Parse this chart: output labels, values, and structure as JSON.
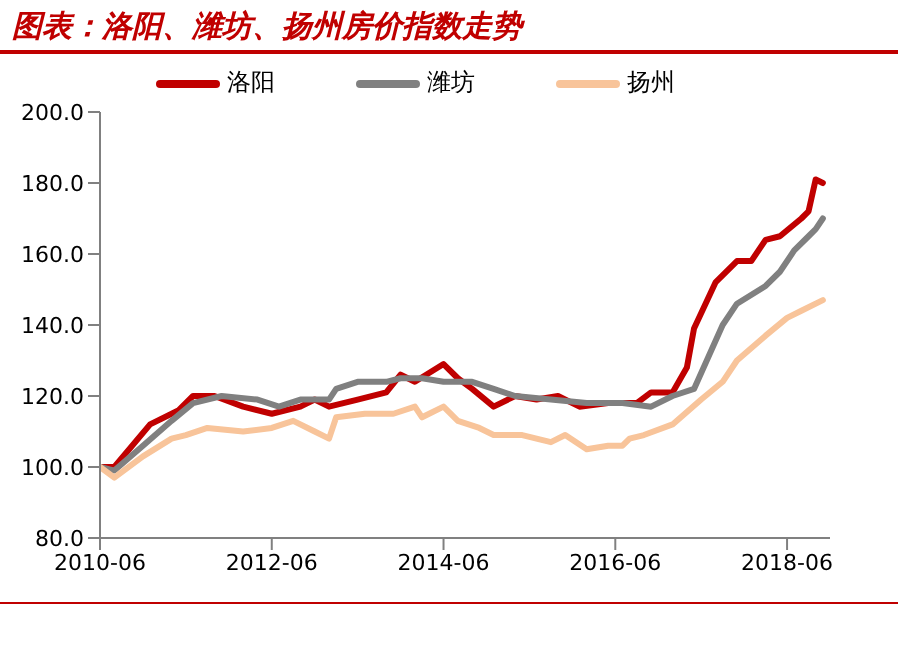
{
  "chart_data": {
    "type": "line",
    "title": "图表：洛阳、潍坊、扬州房价指数走势",
    "xlim": [
      "2010-06",
      "2018-12"
    ],
    "xticks": [
      {
        "value": "2010-06",
        "label": "2010-06"
      },
      {
        "value": "2012-06",
        "label": "2012-06"
      },
      {
        "value": "2014-06",
        "label": "2014-06"
      },
      {
        "value": "2016-06",
        "label": "2016-06"
      },
      {
        "value": "2018-06",
        "label": "2018-06"
      }
    ],
    "ylim": [
      80,
      200
    ],
    "yticks": [
      {
        "value": 80,
        "label": "80.0"
      },
      {
        "value": 100,
        "label": "100.0"
      },
      {
        "value": 120,
        "label": "120.0"
      },
      {
        "value": 140,
        "label": "140.0"
      },
      {
        "value": 160,
        "label": "160.0"
      },
      {
        "value": 180,
        "label": "180.0"
      },
      {
        "value": 200,
        "label": "200.0"
      }
    ],
    "grid": false,
    "legend": "top",
    "marker": "none",
    "line_style": "solid",
    "series": [
      {
        "name": "洛阳",
        "color": "#c00000",
        "x": [
          "2010-06",
          "2010-08",
          "2011-01",
          "2011-05",
          "2011-07",
          "2011-10",
          "2012-02",
          "2012-06",
          "2012-10",
          "2012-12",
          "2013-02",
          "2013-06",
          "2013-10",
          "2013-12",
          "2014-02",
          "2014-06",
          "2014-08",
          "2014-10",
          "2015-01",
          "2015-04",
          "2015-07",
          "2015-10",
          "2016-01",
          "2016-05",
          "2016-09",
          "2016-11",
          "2017-02",
          "2017-04",
          "2017-05",
          "2017-08",
          "2017-11",
          "2018-01",
          "2018-03",
          "2018-05",
          "2018-08",
          "2018-09",
          "2018-10",
          "2018-11"
        ],
        "values": [
          100,
          100,
          112,
          116,
          120,
          120,
          117,
          115,
          117,
          119,
          117,
          119,
          121,
          126,
          124,
          129,
          125,
          122,
          117,
          120,
          119,
          120,
          117,
          118,
          118,
          121,
          121,
          128,
          139,
          152,
          158,
          158,
          164,
          165,
          170,
          172,
          181,
          180
        ]
      },
      {
        "name": "潍坊",
        "color": "#808080",
        "x": [
          "2010-06",
          "2010-08",
          "2010-12",
          "2011-04",
          "2011-07",
          "2011-11",
          "2012-04",
          "2012-07",
          "2012-10",
          "2013-02",
          "2013-03",
          "2013-06",
          "2013-10",
          "2013-12",
          "2014-03",
          "2014-06",
          "2014-10",
          "2015-01",
          "2015-04",
          "2015-09",
          "2016-02",
          "2016-07",
          "2016-11",
          "2017-02",
          "2017-05",
          "2017-07",
          "2017-09",
          "2017-11",
          "2018-03",
          "2018-05",
          "2018-07",
          "2018-09",
          "2018-10",
          "2018-11"
        ],
        "values": [
          100,
          99,
          106,
          113,
          118,
          120,
          119,
          117,
          119,
          119,
          122,
          124,
          124,
          125,
          125,
          124,
          124,
          122,
          120,
          119,
          118,
          118,
          117,
          120,
          122,
          131,
          140,
          146,
          151,
          155,
          161,
          165,
          167,
          170
        ]
      },
      {
        "name": "扬州",
        "color": "#f8c49a",
        "x": [
          "2010-06",
          "2010-08",
          "2010-12",
          "2011-04",
          "2011-06",
          "2011-09",
          "2012-02",
          "2012-06",
          "2012-09",
          "2012-12",
          "2013-02",
          "2013-03",
          "2013-07",
          "2013-11",
          "2014-02",
          "2014-03",
          "2014-06",
          "2014-08",
          "2014-11",
          "2015-01",
          "2015-05",
          "2015-09",
          "2015-11",
          "2016-02",
          "2016-05",
          "2016-07",
          "2016-08",
          "2016-10",
          "2017-02",
          "2017-06",
          "2017-09",
          "2017-11",
          "2018-03",
          "2018-06",
          "2018-08",
          "2018-11"
        ],
        "values": [
          100,
          97,
          103,
          108,
          109,
          111,
          110,
          111,
          113,
          110,
          108,
          114,
          115,
          115,
          117,
          114,
          117,
          113,
          111,
          109,
          109,
          107,
          109,
          105,
          106,
          106,
          108,
          109,
          112,
          119,
          124,
          130,
          137,
          142,
          144,
          147
        ]
      }
    ]
  }
}
